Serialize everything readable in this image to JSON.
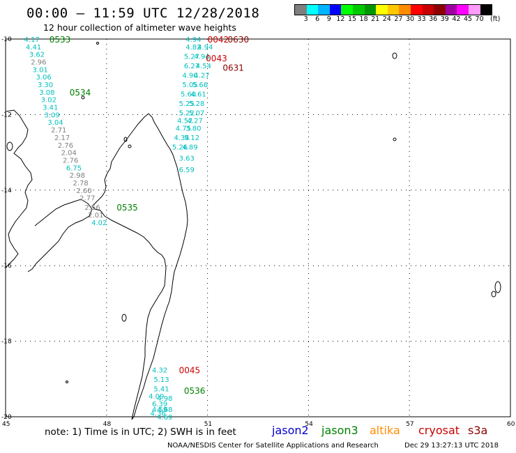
{
  "header": {
    "title": "00:00 — 11:59 UTC 12/28/2018",
    "subtitle": "12 hour collection of altimeter wave heights"
  },
  "colorbar": {
    "colors": [
      "#7f7f7f",
      "#00ffff",
      "#00b4ff",
      "#0000ff",
      "#00ff00",
      "#00c800",
      "#009600",
      "#ffff00",
      "#ffc800",
      "#ff8c00",
      "#ff0000",
      "#c80000",
      "#8c0000",
      "#a000a0",
      "#ff00ff",
      "#ff9bff",
      "#000000"
    ],
    "labels": [
      "3",
      "6",
      "9",
      "12",
      "15",
      "18",
      "21",
      "24",
      "27",
      "30",
      "33",
      "36",
      "39",
      "42",
      "45",
      "70",
      "(ft)"
    ]
  },
  "axes": {
    "lat_labels": [
      "-10",
      "-12",
      "-14",
      "-16",
      "-18",
      "-20"
    ],
    "lon_labels": [
      "45",
      "48",
      "51",
      "54",
      "57",
      "60"
    ]
  },
  "passes": [
    {
      "label": "0533",
      "color": "#008000",
      "lon": 46.3,
      "lat": -10.0
    },
    {
      "label": "0534",
      "color": "#008000",
      "lon": 46.9,
      "lat": -11.4
    },
    {
      "label": "0535",
      "color": "#008000",
      "lon": 48.3,
      "lat": -14.45
    },
    {
      "label": "0536",
      "color": "#008000",
      "lon": 50.3,
      "lat": -19.3
    },
    {
      "label": "0042",
      "color": "#cc0000",
      "lon": 51.0,
      "lat": -10.0
    },
    {
      "label": "0630",
      "color": "#8b0000",
      "lon": 51.6,
      "lat": -10.0
    },
    {
      "label": "0043",
      "color": "#cc0000",
      "lon": 50.95,
      "lat": -10.5
    },
    {
      "label": "0631",
      "color": "#8b0000",
      "lon": 51.45,
      "lat": -10.75
    },
    {
      "label": "0045",
      "color": "#cc0000",
      "lon": 50.15,
      "lat": -18.75
    }
  ],
  "observations": [
    {
      "v": "4.17",
      "c": "#00bfbf",
      "lon": 45.55,
      "lat": -10.0
    },
    {
      "v": "4.41",
      "c": "#00bfbf",
      "lon": 45.6,
      "lat": -10.2
    },
    {
      "v": "3.62",
      "c": "#00bfbf",
      "lon": 45.7,
      "lat": -10.4
    },
    {
      "v": "2.96",
      "c": "#7f7f7f",
      "lon": 45.75,
      "lat": -10.6
    },
    {
      "v": "3.01",
      "c": "#00bfbf",
      "lon": 45.8,
      "lat": -10.8
    },
    {
      "v": "3.06",
      "c": "#00bfbf",
      "lon": 45.9,
      "lat": -11.0
    },
    {
      "v": "3.30",
      "c": "#00bfbf",
      "lon": 45.95,
      "lat": -11.2
    },
    {
      "v": "3.08",
      "c": "#00bfbf",
      "lon": 46.0,
      "lat": -11.4
    },
    {
      "v": "3.02",
      "c": "#00bfbf",
      "lon": 46.05,
      "lat": -11.6
    },
    {
      "v": "3.41",
      "c": "#00bfbf",
      "lon": 46.1,
      "lat": -11.8
    },
    {
      "v": "3.09",
      "c": "#00bfbf",
      "lon": 46.15,
      "lat": -12.0
    },
    {
      "v": "3.04",
      "c": "#00bfbf",
      "lon": 46.25,
      "lat": -12.2
    },
    {
      "v": "2.71",
      "c": "#7f7f7f",
      "lon": 46.35,
      "lat": -12.4
    },
    {
      "v": "2.17",
      "c": "#7f7f7f",
      "lon": 46.45,
      "lat": -12.6
    },
    {
      "v": "2.76",
      "c": "#7f7f7f",
      "lon": 46.55,
      "lat": -12.8
    },
    {
      "v": "2.04",
      "c": "#7f7f7f",
      "lon": 46.65,
      "lat": -13.0
    },
    {
      "v": "2.76",
      "c": "#7f7f7f",
      "lon": 46.7,
      "lat": -13.2
    },
    {
      "v": "6.75",
      "c": "#00bfbf",
      "lon": 46.8,
      "lat": -13.4
    },
    {
      "v": "2.98",
      "c": "#7f7f7f",
      "lon": 46.9,
      "lat": -13.6
    },
    {
      "v": "2.78",
      "c": "#7f7f7f",
      "lon": 47.0,
      "lat": -13.8
    },
    {
      "v": "2.60",
      "c": "#7f7f7f",
      "lon": 47.1,
      "lat": -14.0
    },
    {
      "v": "2.77",
      "c": "#7f7f7f",
      "lon": 47.2,
      "lat": -14.2
    },
    {
      "v": "2.56",
      "c": "#7f7f7f",
      "lon": 47.35,
      "lat": -14.45
    },
    {
      "v": "2.01",
      "c": "#7f7f7f",
      "lon": 47.45,
      "lat": -14.65
    },
    {
      "v": "4.02",
      "c": "#00bfbf",
      "lon": 47.55,
      "lat": -14.85
    },
    {
      "v": "4.94",
      "c": "#00bfbf",
      "lon": 50.35,
      "lat": -10.0
    },
    {
      "v": "4.82",
      "c": "#00bfbf",
      "lon": 50.35,
      "lat": -10.2
    },
    {
      "v": "4.94",
      "c": "#00bfbf",
      "lon": 50.7,
      "lat": -10.2
    },
    {
      "v": "5.27",
      "c": "#00bfbf",
      "lon": 50.3,
      "lat": -10.45
    },
    {
      "v": "4.94",
      "c": "#00bfbf",
      "lon": 50.6,
      "lat": -10.45
    },
    {
      "v": "6.27",
      "c": "#00bfbf",
      "lon": 50.3,
      "lat": -10.7
    },
    {
      "v": "4.54",
      "c": "#00bfbf",
      "lon": 50.65,
      "lat": -10.7
    },
    {
      "v": "4.90",
      "c": "#00bfbf",
      "lon": 50.25,
      "lat": -10.95
    },
    {
      "v": "4.27",
      "c": "#00bfbf",
      "lon": 50.6,
      "lat": -10.95
    },
    {
      "v": "5.05",
      "c": "#00bfbf",
      "lon": 50.25,
      "lat": -11.2
    },
    {
      "v": "5.66",
      "c": "#00bfbf",
      "lon": 50.55,
      "lat": -11.2
    },
    {
      "v": "5.60",
      "c": "#00bfbf",
      "lon": 50.2,
      "lat": -11.45
    },
    {
      "v": "4.61",
      "c": "#00bfbf",
      "lon": 50.5,
      "lat": -11.45
    },
    {
      "v": "5.25",
      "c": "#00bfbf",
      "lon": 50.15,
      "lat": -11.7
    },
    {
      "v": "5.28",
      "c": "#00bfbf",
      "lon": 50.45,
      "lat": -11.7
    },
    {
      "v": "5.22",
      "c": "#00bfbf",
      "lon": 50.15,
      "lat": -11.95
    },
    {
      "v": "5.07",
      "c": "#00bfbf",
      "lon": 50.45,
      "lat": -11.95
    },
    {
      "v": "4.52",
      "c": "#00bfbf",
      "lon": 50.1,
      "lat": -12.15
    },
    {
      "v": "4.27",
      "c": "#00bfbf",
      "lon": 50.4,
      "lat": -12.15
    },
    {
      "v": "4.75",
      "c": "#00bfbf",
      "lon": 50.05,
      "lat": -12.35
    },
    {
      "v": "3.80",
      "c": "#00bfbf",
      "lon": 50.35,
      "lat": -12.35
    },
    {
      "v": "4.34",
      "c": "#00bfbf",
      "lon": 50.0,
      "lat": -12.6
    },
    {
      "v": "5.12",
      "c": "#00bfbf",
      "lon": 50.3,
      "lat": -12.6
    },
    {
      "v": "5.26",
      "c": "#00bfbf",
      "lon": 49.95,
      "lat": -12.85
    },
    {
      "v": "4.89",
      "c": "#00bfbf",
      "lon": 50.25,
      "lat": -12.85
    },
    {
      "v": "3.63",
      "c": "#00bfbf",
      "lon": 50.15,
      "lat": -13.15
    },
    {
      "v": "6.59",
      "c": "#00bfbf",
      "lon": 50.15,
      "lat": -13.45
    },
    {
      "v": "4.32",
      "c": "#00bfbf",
      "lon": 49.35,
      "lat": -18.75
    },
    {
      "v": "5.13",
      "c": "#00bfbf",
      "lon": 49.4,
      "lat": -19.0
    },
    {
      "v": "5.41",
      "c": "#00bfbf",
      "lon": 49.4,
      "lat": -19.25
    },
    {
      "v": "4.09",
      "c": "#00bfbf",
      "lon": 49.25,
      "lat": -19.45
    },
    {
      "v": "4.98",
      "c": "#00bfbf",
      "lon": 49.5,
      "lat": -19.5
    },
    {
      "v": "6.39",
      "c": "#00bfbf",
      "lon": 49.35,
      "lat": -19.65
    },
    {
      "v": "4.59",
      "c": "#00bfbf",
      "lon": 49.35,
      "lat": -19.8
    },
    {
      "v": "4.68",
      "c": "#00bfbf",
      "lon": 49.5,
      "lat": -19.8
    },
    {
      "v": "4.36",
      "c": "#00bfbf",
      "lon": 49.3,
      "lat": -19.9
    },
    {
      "v": "4.69",
      "c": "#00bfbf",
      "lon": 49.5,
      "lat": -20.0
    }
  ],
  "footer": {
    "note": "note:  1) Time is in UTC;  2) SWH is in feet",
    "satellites": [
      {
        "name": "jason2",
        "color": "#0000cc"
      },
      {
        "name": "jason3",
        "color": "#008000"
      },
      {
        "name": "altika",
        "color": "#ff8c00"
      },
      {
        "name": "cryosat",
        "color": "#cc0000"
      },
      {
        "name": "s3a",
        "color": "#8b0000"
      }
    ],
    "credit": "NOAA/NESDIS Center for Satellite Applications and Research",
    "timestamp": "Dec 29 13:27:13 UTC 2018"
  }
}
